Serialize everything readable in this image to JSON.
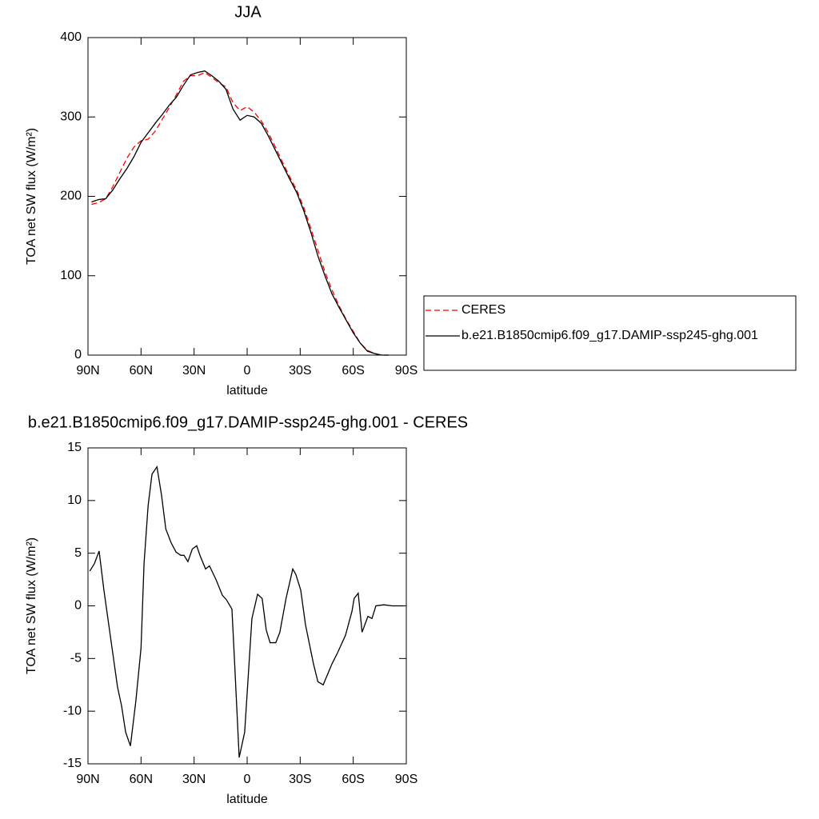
{
  "chart_data": [
    {
      "type": "line",
      "title": "JJA",
      "xlabel": "latitude",
      "ylabel": "TOA net SW flux (W/m²)",
      "x": [
        88,
        84,
        80,
        76,
        72,
        68,
        64,
        60,
        56,
        52,
        48,
        44,
        40,
        36,
        32,
        28,
        24,
        20,
        16,
        12,
        8,
        4,
        0,
        -4,
        -8,
        -12,
        -16,
        -20,
        -24,
        -28,
        -32,
        -36,
        -40,
        -44,
        -48,
        -52,
        -56,
        -60,
        -64,
        -68,
        -72,
        -76,
        -80
      ],
      "series": [
        {
          "name": "CERES",
          "color": "#ff0000",
          "linestyle": "dashed",
          "values": [
            190,
            192,
            197,
            212,
            230,
            248,
            262,
            270,
            272,
            282,
            297,
            312,
            328,
            345,
            352,
            352,
            356,
            350,
            343,
            338,
            318,
            308,
            313,
            306,
            295,
            280,
            262,
            243,
            225,
            208,
            186,
            160,
            132,
            105,
            82,
            62,
            45,
            30,
            15,
            6,
            2,
            0,
            0
          ]
        },
        {
          "name": "b.e21.B1850cmip6.f09_g17.DAMIP-ssp245-ghg.001",
          "color": "#000000",
          "linestyle": "solid",
          "values": [
            193,
            196,
            197,
            208,
            222,
            235,
            250,
            268,
            280,
            292,
            303,
            315,
            325,
            340,
            353,
            356,
            358,
            352,
            345,
            335,
            310,
            296,
            302,
            300,
            292,
            276,
            258,
            240,
            222,
            205,
            182,
            155,
            125,
            100,
            77,
            60,
            44,
            28,
            15,
            5,
            2,
            0,
            0
          ]
        }
      ],
      "xlim": [
        90,
        -90
      ],
      "xticks": [
        {
          "value": 90,
          "label": "90N"
        },
        {
          "value": 60,
          "label": "60N"
        },
        {
          "value": 30,
          "label": "30N"
        },
        0,
        {
          "value": -30,
          "label": "30S"
        },
        {
          "value": -60,
          "label": "60S"
        },
        {
          "value": -90,
          "label": "90S"
        }
      ],
      "ylim": [
        0,
        400
      ],
      "yticks": [
        0,
        100,
        200,
        300,
        400
      ],
      "legend": "right"
    },
    {
      "type": "line",
      "title": "b.e21.B1850cmip6.f09_g17.DAMIP-ssp245-ghg.001 - CERES",
      "xlabel": "latitude",
      "ylabel": "TOA net SW flux (W/m²)",
      "x": [
        89,
        86.4,
        83.7,
        81,
        76.4,
        73.3,
        71,
        68.7,
        66,
        62.9,
        60,
        58.3,
        56,
        53.8,
        51,
        48.4,
        46,
        43,
        40.2,
        37.5,
        35.7,
        33.5,
        31,
        28.5,
        26.7,
        23.5,
        21.3,
        17.6,
        14,
        11.8,
        8.6,
        7.2,
        4.5,
        1.4,
        -2.7,
        -5.9,
        -8.5,
        -10.8,
        -13,
        -16.2,
        -18.5,
        -22,
        -25.8,
        -27.5,
        -30.3,
        -33,
        -37.5,
        -40,
        -43,
        -48,
        -51,
        -55.6,
        -59.3,
        -60.5,
        -62.8,
        -65,
        -68.3,
        -70.6,
        -72.8,
        -77.3,
        -82,
        -88.7
      ],
      "values": [
        3.3,
        4,
        5.2,
        1.5,
        -4,
        -7.7,
        -9.5,
        -12,
        -13.3,
        -9,
        -4,
        4,
        9.5,
        12.5,
        13.2,
        10.5,
        7.3,
        6,
        5.1,
        4.8,
        4.8,
        4.2,
        5.4,
        5.7,
        4.8,
        3.5,
        3.8,
        2.5,
        1,
        0.6,
        -0.3,
        -5,
        -14.4,
        -12,
        -1.2,
        1.1,
        0.7,
        -2.3,
        -3.5,
        -3.5,
        -2.5,
        0.7,
        3.5,
        3,
        1.5,
        -1.8,
        -5.5,
        -7.2,
        -7.5,
        -5.5,
        -4.5,
        -2.8,
        -0.5,
        0.7,
        1.2,
        -2.5,
        -1,
        -1.2,
        0,
        0.1,
        0,
        0
      ],
      "color": "#000000",
      "xlim": [
        90,
        -90
      ],
      "xticks": [
        {
          "value": 90,
          "label": "90N"
        },
        {
          "value": 60,
          "label": "60N"
        },
        {
          "value": 30,
          "label": "30N"
        },
        0,
        {
          "value": -30,
          "label": "30S"
        },
        {
          "value": -60,
          "label": "60S"
        },
        {
          "value": -90,
          "label": "90S"
        }
      ],
      "ylim": [
        -15,
        15
      ],
      "yticks": [
        -15,
        -10,
        -5,
        0,
        5,
        10,
        15
      ]
    }
  ]
}
